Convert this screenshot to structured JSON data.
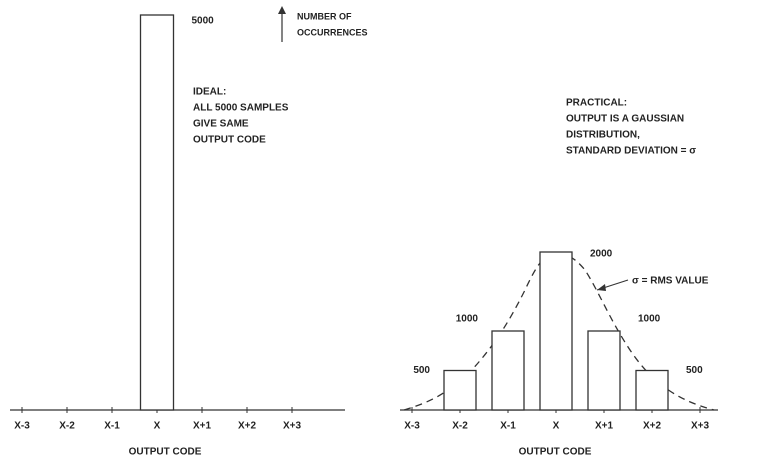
{
  "chart_data": [
    {
      "type": "bar",
      "categories": [
        "X-3",
        "X-2",
        "X-1",
        "X",
        "X+1",
        "X+2",
        "X+3"
      ],
      "values": [
        0,
        0,
        0,
        5000,
        0,
        0,
        0
      ],
      "ylim": [
        0,
        5000
      ],
      "x_label": "OUTPUT CODE",
      "y_label": [
        "NUMBER OF",
        "OCCURRENCES"
      ],
      "annotation": [
        "IDEAL:",
        "ALL 5000 SAMPLES",
        "GIVE SAME",
        "OUTPUT CODE"
      ]
    },
    {
      "type": "bar",
      "categories": [
        "X-3",
        "X-2",
        "X-1",
        "X",
        "X+1",
        "X+2",
        "X+3"
      ],
      "values": [
        0,
        500,
        1000,
        2000,
        1000,
        500,
        0
      ],
      "ylim": [
        0,
        5000
      ],
      "x_label": "OUTPUT CODE",
      "annotation": [
        "PRACTICAL:",
        "OUTPUT IS A GAUSSIAN",
        "DISTRIBUTION,",
        "STANDARD DEVIATION = σ"
      ],
      "curve_label": "σ = RMS VALUE"
    }
  ]
}
